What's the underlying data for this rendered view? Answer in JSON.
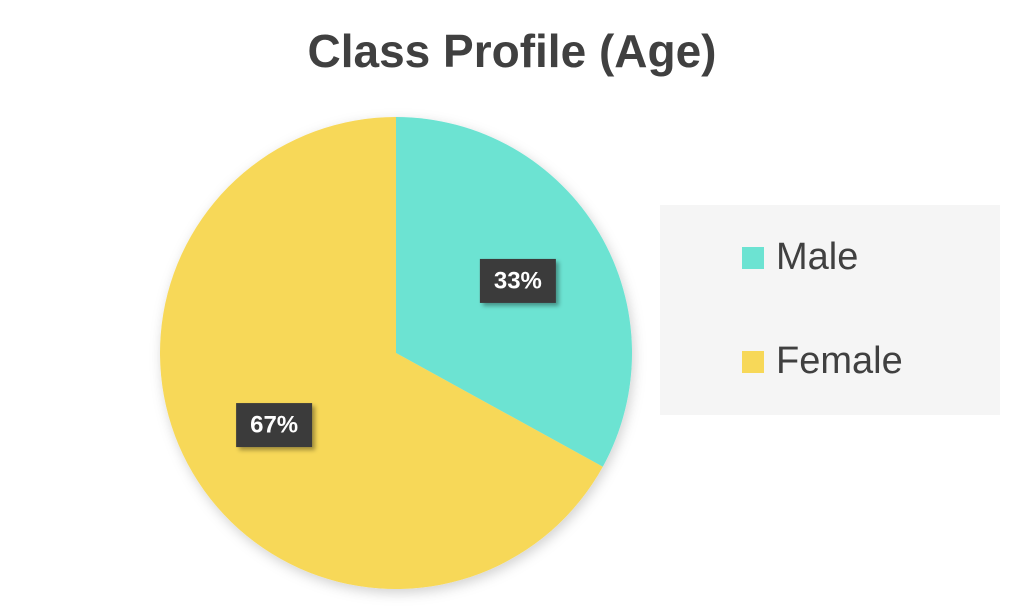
{
  "chart_data": {
    "type": "pie",
    "title": "Class Profile (Age)",
    "categories": [
      "Male",
      "Female"
    ],
    "values": [
      33,
      67
    ],
    "value_labels": [
      "33%",
      "67%"
    ],
    "colors": [
      "#6ce3d2",
      "#f7d858"
    ],
    "legend": "right"
  }
}
